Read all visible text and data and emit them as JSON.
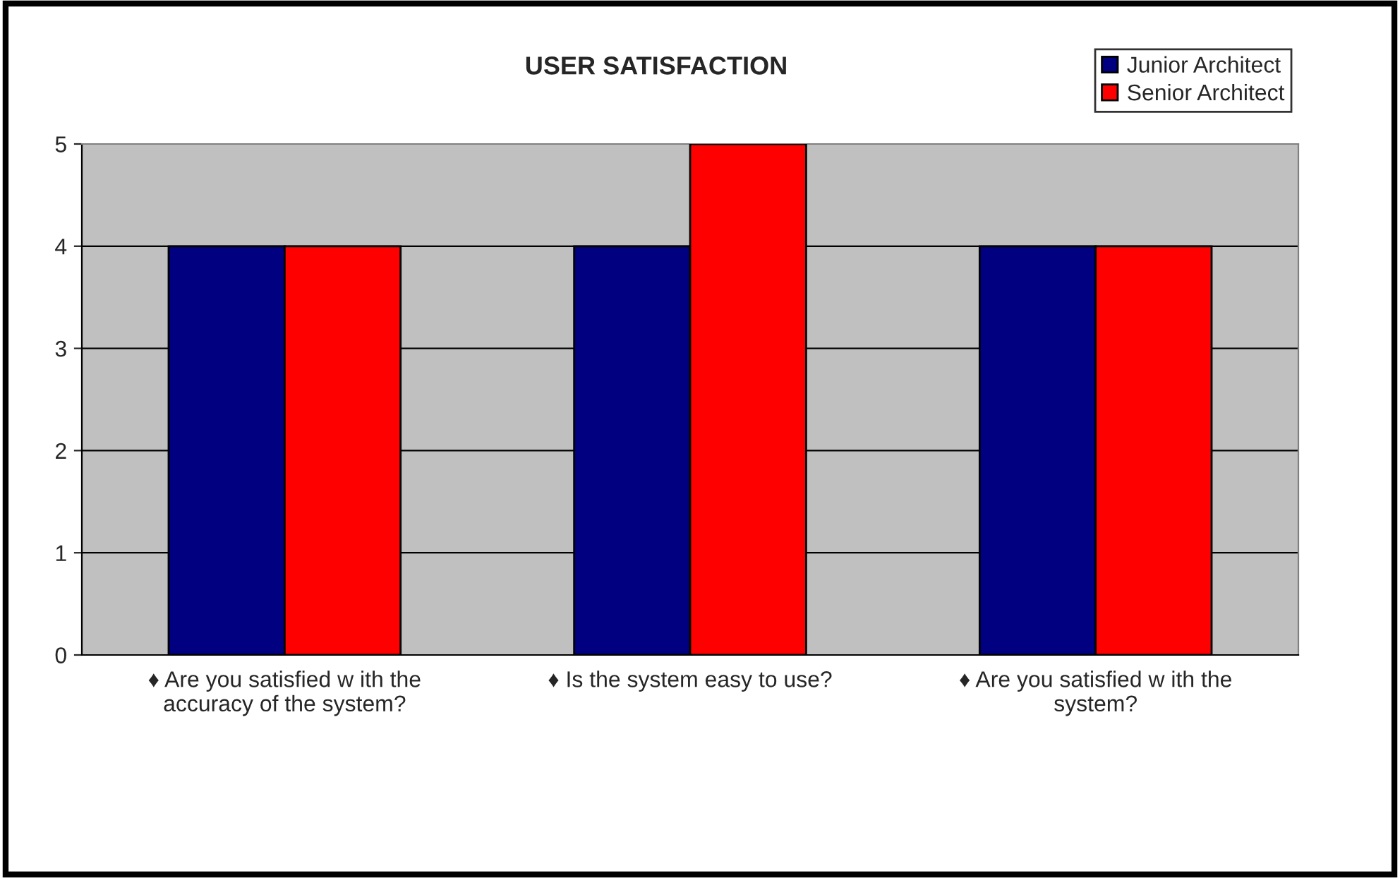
{
  "chart_data": {
    "type": "bar",
    "title": "USER SATISFACTION",
    "categories": [
      "♦ Are you satisfied w ith the\naccuracy of the system?",
      "♦ Is the system easy to use?",
      "♦ Are you satisfied w ith the\nsystem?"
    ],
    "series": [
      {
        "name": "Junior Architect",
        "color": "#000080",
        "values": [
          4,
          4,
          4
        ]
      },
      {
        "name": "Senior Architect",
        "color": "#ff0000",
        "values": [
          4,
          5,
          4
        ]
      }
    ],
    "ylim": [
      0,
      5
    ],
    "yticks": [
      0,
      1,
      2,
      3,
      4,
      5
    ],
    "grid": "y",
    "legend": "top right"
  }
}
